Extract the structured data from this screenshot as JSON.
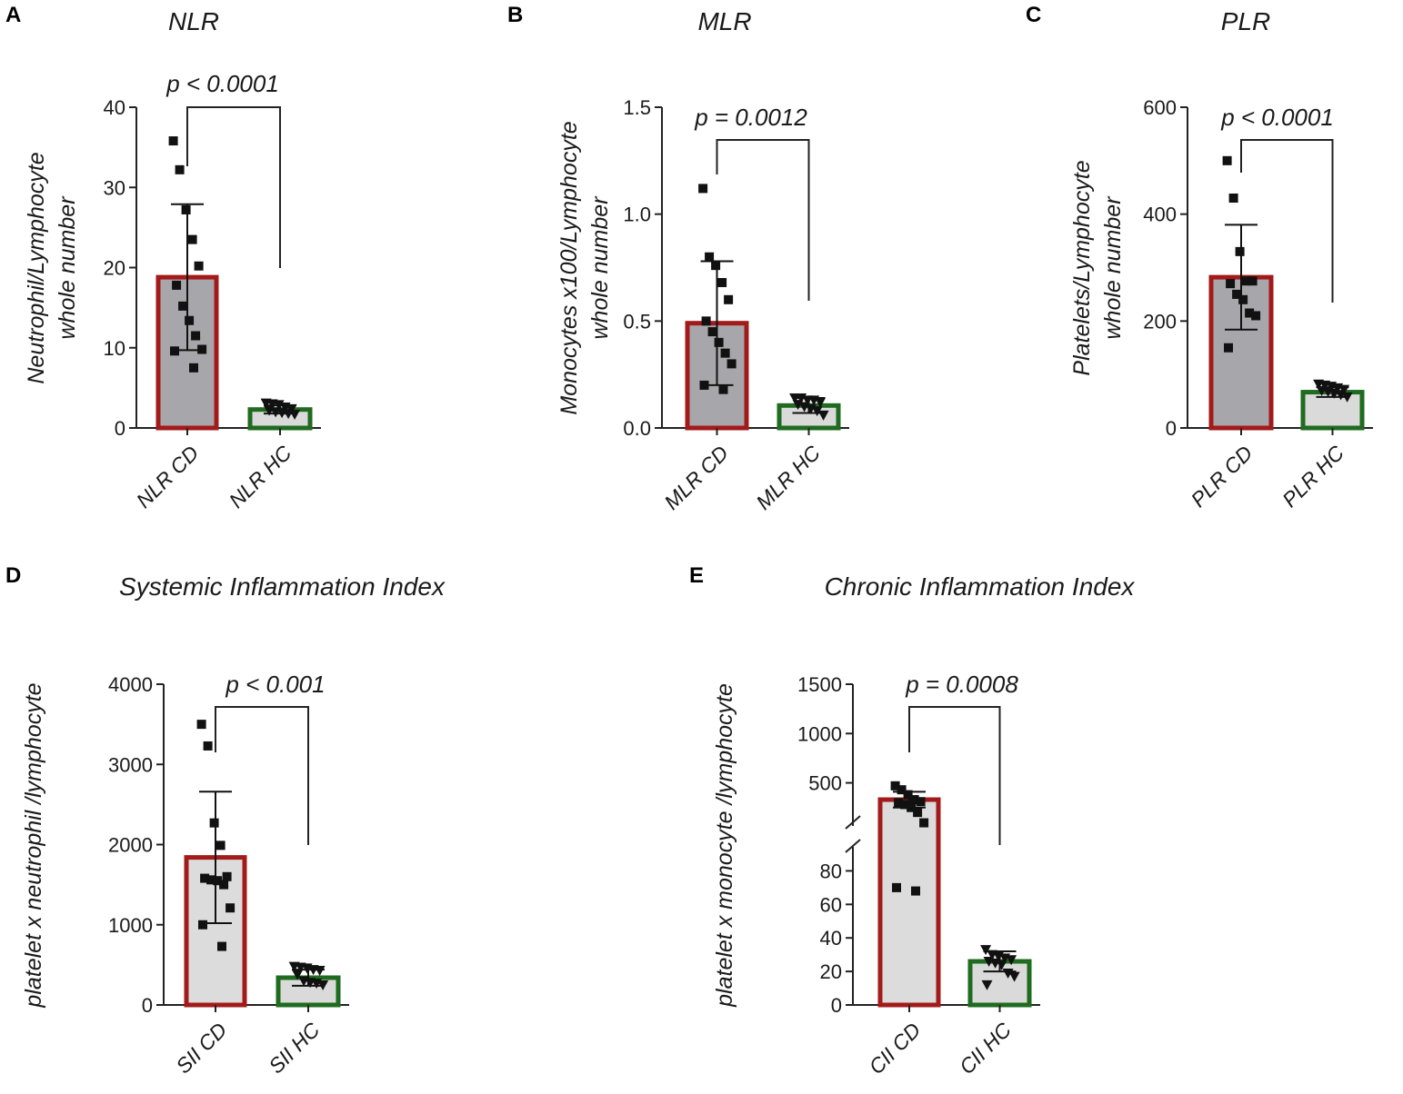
{
  "chart_data": [
    {
      "panel": "A",
      "type": "bar",
      "title": "NLR",
      "ylabel": [
        "Neutrophil/Lymphocyte",
        "whole number"
      ],
      "ylim": [
        0,
        40
      ],
      "yticks": [
        0,
        10,
        20,
        30,
        40
      ],
      "ytick_labels": [
        "0",
        "10",
        "20",
        "30",
        "40"
      ],
      "categories": [
        "NLR CD",
        "NLR HC"
      ],
      "values": [
        18.8,
        2.3
      ],
      "errors": [
        9.1,
        0.5
      ],
      "points": [
        [
          35.8,
          32.2,
          27.2,
          23.5,
          20.2,
          17.8,
          15.2,
          13.4,
          11.5,
          9.8,
          9.6,
          7.5
        ],
        [
          3.1,
          3.0,
          2.9,
          2.6,
          2.4,
          2.2,
          2.0,
          1.9,
          1.8,
          1.7
        ]
      ],
      "p_value": "p < 0.0001",
      "colors": [
        "#a31a1a",
        "#1f6b1f"
      ],
      "fills": [
        "#a7a7ab",
        "#dadada"
      ],
      "markers": [
        "square",
        "triangle-down"
      ]
    },
    {
      "panel": "B",
      "type": "bar",
      "title": "MLR",
      "ylabel": [
        "Monocytes x100/Lymphocyte",
        "whole number"
      ],
      "ylim": [
        0,
        1.5
      ],
      "yticks": [
        0,
        0.5,
        1.0,
        1.5
      ],
      "ytick_labels": [
        "0.0",
        "0.5",
        "1.0",
        "1.5"
      ],
      "categories": [
        "MLR CD",
        "MLR HC"
      ],
      "values": [
        0.49,
        0.105
      ],
      "errors": [
        0.29,
        0.035
      ],
      "points": [
        [
          1.12,
          0.8,
          0.76,
          0.68,
          0.6,
          0.5,
          0.45,
          0.4,
          0.35,
          0.3,
          0.2,
          0.18
        ],
        [
          0.14,
          0.14,
          0.13,
          0.13,
          0.12,
          0.11,
          0.1,
          0.09,
          0.08,
          0.06
        ]
      ],
      "p_value": "p = 0.0012",
      "colors": [
        "#a31a1a",
        "#1f6b1f"
      ],
      "fills": [
        "#a7a7ab",
        "#dadada"
      ],
      "markers": [
        "square",
        "triangle-down"
      ]
    },
    {
      "panel": "C",
      "type": "bar",
      "title": "PLR",
      "ylabel": [
        "Platelets/Lymphocyte",
        "whole number"
      ],
      "ylim": [
        0,
        600
      ],
      "yticks": [
        0,
        200,
        400,
        600
      ],
      "ytick_labels": [
        "0",
        "200",
        "400",
        "600"
      ],
      "categories": [
        "PLR CD",
        "PLR HC"
      ],
      "values": [
        282,
        67
      ],
      "errors": [
        98,
        9
      ],
      "points": [
        [
          500,
          430,
          330,
          275,
          275,
          270,
          250,
          240,
          215,
          210,
          150
        ],
        [
          82,
          80,
          78,
          75,
          72,
          70,
          68,
          65,
          62,
          58
        ]
      ],
      "p_value": "p < 0.0001",
      "colors": [
        "#a31a1a",
        "#1f6b1f"
      ],
      "fills": [
        "#a7a7ab",
        "#dadada"
      ],
      "markers": [
        "square",
        "triangle-down"
      ]
    },
    {
      "panel": "D",
      "type": "bar",
      "title": "Systemic Inflammation Index",
      "ylabel": [
        "platelet x neutrophil /lymphocyte"
      ],
      "ylim": [
        0,
        4000
      ],
      "yticks": [
        0,
        1000,
        2000,
        3000,
        4000
      ],
      "ytick_labels": [
        "0",
        "1000",
        "2000",
        "3000",
        "4000"
      ],
      "categories": [
        "SII CD",
        "SII HC"
      ],
      "values": [
        1840,
        340
      ],
      "errors": [
        820,
        100
      ],
      "points": [
        [
          3500,
          3230,
          2270,
          1990,
          1600,
          1580,
          1560,
          1550,
          1500,
          1210,
          1000,
          730
        ],
        [
          480,
          470,
          460,
          440,
          430,
          380,
          300,
          280,
          270,
          250
        ]
      ],
      "p_value": "p < 0.001",
      "colors": [
        "#a31a1a",
        "#1f6b1f"
      ],
      "fills": [
        "#dcdcdc",
        "#dadada"
      ],
      "markers": [
        "square",
        "triangle-down"
      ]
    },
    {
      "panel": "E",
      "type": "bar",
      "title": "Chronic Inflammation Index",
      "ylabel": [
        "platelet x monocyte /lymphocyte"
      ],
      "axis_break": {
        "lower_max": 90,
        "upper_min": 100
      },
      "ylim": [
        0,
        1500
      ],
      "yticks": [
        0,
        20,
        40,
        60,
        80,
        500,
        1000,
        1500
      ],
      "ytick_labels": [
        "0",
        "20",
        "40",
        "60",
        "80",
        "500",
        "1000",
        "1500"
      ],
      "categories": [
        "CII CD",
        "CII HC"
      ],
      "values": [
        330,
        26
      ],
      "errors": [
        80,
        6
      ],
      "points": [
        [
          470,
          430,
          380,
          330,
          310,
          300,
          280,
          250,
          200,
          95,
          70,
          68
        ],
        [
          33,
          30,
          29,
          28,
          27,
          26,
          25,
          24,
          19,
          17,
          12
        ]
      ],
      "p_value": "p = 0.0008",
      "colors": [
        "#a31a1a",
        "#1f6b1f"
      ],
      "fills": [
        "#dcdcdc",
        "#dadada"
      ],
      "markers": [
        "square",
        "triangle-down"
      ]
    }
  ]
}
